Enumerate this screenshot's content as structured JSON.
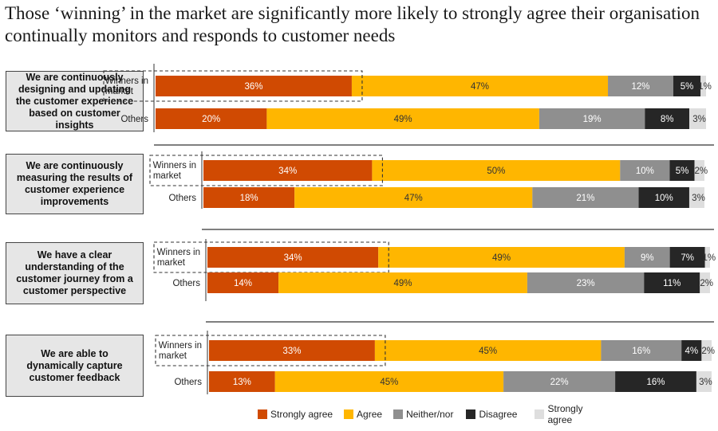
{
  "title": "Those ‘winning’ in the market are significantly more likely to strongly agree their organisation continually monitors and responds to customer needs",
  "chart_data": {
    "type": "bar",
    "orientation": "horizontal-stacked-100",
    "categories_per_group": [
      "Winners in market",
      "Others"
    ],
    "series_names": [
      "Strongly agree",
      "Agree",
      "Neither/nor",
      "Disagree",
      "Strongly agree"
    ],
    "colors": [
      "#d04a02",
      "#ffb600",
      "#8f8f8f",
      "#262626",
      "#dedede"
    ],
    "groups": [
      {
        "statement": "We are continuously designing and updating the customer experience based on customer insights",
        "rows": [
          {
            "label": "Winners in market",
            "values": [
              36,
              47,
              12,
              5,
              1
            ],
            "labels": [
              "36%",
              "47%",
              "12%",
              "5%",
              "1%"
            ]
          },
          {
            "label": "Others",
            "values": [
              20,
              49,
              19,
              8,
              3
            ],
            "labels": [
              "20%",
              "49%",
              "19%",
              "8%",
              "3%"
            ]
          }
        ]
      },
      {
        "statement": "We are continuously measuring the results of customer experience improvements",
        "rows": [
          {
            "label": "Winners in market",
            "values": [
              34,
              50,
              10,
              5,
              2
            ],
            "labels": [
              "34%",
              "50%",
              "10%",
              "5%",
              "2%"
            ]
          },
          {
            "label": "Others",
            "values": [
              18,
              47,
              21,
              10,
              3
            ],
            "labels": [
              "18%",
              "47%",
              "21%",
              "10%",
              "3%"
            ]
          }
        ]
      },
      {
        "statement": "We have a clear understanding of the customer journey from a customer perspective",
        "rows": [
          {
            "label": "Winners in market",
            "values": [
              34,
              49,
              9,
              7,
              1
            ],
            "labels": [
              "34%",
              "49%",
              "9%",
              "7%",
              "1%"
            ]
          },
          {
            "label": "Others",
            "values": [
              14,
              49,
              23,
              11,
              2
            ],
            "labels": [
              "14%",
              "49%",
              "23%",
              "11%",
              "2%"
            ]
          }
        ]
      },
      {
        "statement": "We are able to dynamically capture customer feedback",
        "rows": [
          {
            "label": "Winners in market",
            "values": [
              33,
              45,
              16,
              4,
              2
            ],
            "labels": [
              "33%",
              "45%",
              "16%",
              "4%",
              "2%"
            ]
          },
          {
            "label": "Others",
            "values": [
              13,
              45,
              22,
              16,
              3
            ],
            "labels": [
              "13%",
              "45%",
              "22%",
              "16%",
              "3%"
            ]
          }
        ]
      }
    ],
    "legend_position": "bottom",
    "highlight": "dashed box around Winners in market label and Strongly agree segment"
  }
}
